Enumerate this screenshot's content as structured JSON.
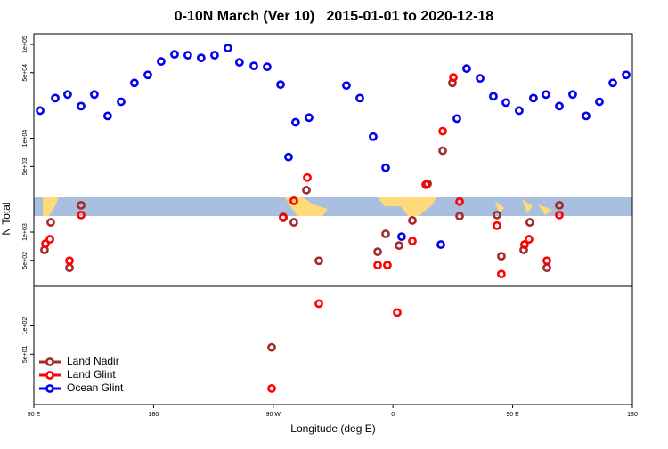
{
  "chart_data": {
    "type": "scatter",
    "title": "0-10N March (Ver 10)   2015-01-01 to 2020-12-18",
    "xlabel": "Longitude (deg E)",
    "ylabel": "N Total",
    "yscale": "log",
    "xlim": [
      90,
      540
    ],
    "ylim": [
      14.5,
      130000
    ],
    "xticks": [
      {
        "value": 90,
        "label": "90 E"
      },
      180,
      {
        "value": 270,
        "label": "90 W"
      },
      {
        "value": 360,
        "label": "0"
      },
      {
        "value": 450,
        "label": "90 E"
      },
      {
        "value": 540,
        "label": "180"
      }
    ],
    "yticks": [
      {
        "value": 100000,
        "label": "1e+05"
      },
      {
        "value": 50000,
        "label": "5e+04"
      },
      {
        "value": 10000,
        "label": "1e+04"
      },
      {
        "value": 5000,
        "label": "5e+03"
      },
      {
        "value": 1000,
        "label": "1e+03"
      },
      {
        "value": 500,
        "label": "5e+02"
      },
      {
        "value": 100,
        "label": "1e+02"
      },
      {
        "value": 50,
        "label": "5e+01"
      }
    ],
    "legend": "bottom-left",
    "series": [
      {
        "name": "Land Nadir",
        "color": "#a52a2a",
        "x": [
          98.0,
          102.7,
          116.8,
          125.5,
          268.8,
          277.5,
          285.5,
          294.9,
          304.3,
          348.5,
          354.5,
          364.6,
          374.6,
          386.0,
          397.4,
          404.7,
          410.1,
          438.2,
          441.5,
          458.3,
          462.9,
          475.7,
          485.1
        ],
        "values": [
          646,
          1270,
          416,
          1930,
          59,
          1450,
          1270,
          2800,
          495,
          617,
          957,
          719,
          1330,
          3270,
          7360,
          38900,
          1480,
          1520,
          553,
          646,
          1270,
          416,
          1930
        ]
      },
      {
        "name": "Land Glint",
        "color": "#ff0000",
        "x": [
          98.7,
          102.1,
          116.8,
          125.5,
          268.8,
          277.5,
          285.5,
          295.6,
          304.3,
          348.5,
          355.8,
          363.2,
          374.6,
          384.7,
          397.4,
          405.4,
          410.1,
          438.2,
          441.5,
          458.9,
          462.3,
          475.7,
          485.1
        ],
        "values": [
          752,
          839,
          495,
          1520,
          21.5,
          1420,
          2150,
          3810,
          173,
          445,
          445,
          139,
          803,
          3200,
          11900,
          44500,
          2110,
          1170,
          357,
          736,
          839,
          495,
          1520
        ]
      },
      {
        "name": "Ocean Glint",
        "color": "#0000ee",
        "x": [
          94.7,
          106.1,
          115.4,
          125.5,
          135.5,
          145.5,
          155.6,
          165.6,
          175.7,
          185.7,
          195.8,
          205.8,
          215.8,
          225.9,
          235.9,
          244.6,
          255.4,
          265.4,
          275.5,
          281.5,
          286.8,
          296.9,
          325.0,
          335.1,
          345.1,
          354.5,
          366.5,
          396.0,
          408.1,
          415.4,
          425.5,
          435.5,
          444.9,
          454.9,
          465.6,
          475.0,
          485.1,
          495.1,
          505.2,
          515.2,
          525.3,
          535.3
        ],
        "values": [
          19700,
          26800,
          29300,
          22000,
          29300,
          17300,
          24500,
          38900,
          47400,
          65900,
          78500,
          76900,
          71900,
          76900,
          91600,
          64500,
          59100,
          57800,
          37300,
          6300,
          14800,
          16600,
          36500,
          26800,
          10400,
          4850,
          895,
          736,
          16200,
          55300,
          43500,
          28000,
          24000,
          19700,
          26800,
          29300,
          22000,
          29300,
          17300,
          24500,
          38900,
          47400
        ]
      }
    ]
  }
}
